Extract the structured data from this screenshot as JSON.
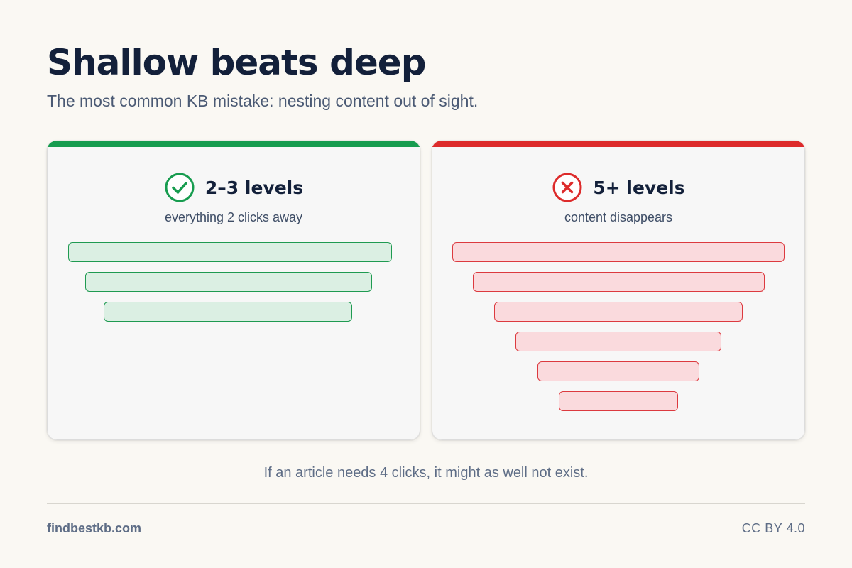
{
  "header": {
    "title": "Shallow beats deep",
    "subtitle": "The most common KB mistake: nesting content out of sight."
  },
  "panels": [
    {
      "id": "shallow",
      "status": "good",
      "icon": "check-circle-icon",
      "accent_color": "#179c4f",
      "title": "2–3 levels",
      "caption": "everything 2 clicks away",
      "level_count": 3
    },
    {
      "id": "deep",
      "status": "bad",
      "icon": "x-circle-icon",
      "accent_color": "#dd2b2b",
      "title": "5+ levels",
      "caption": "content disappears",
      "level_count": 6
    }
  ],
  "footnote": "If an article needs 4 clicks, it might as well not exist.",
  "footer": {
    "site": "findbestkb.com",
    "license": "CC BY 4.0"
  }
}
